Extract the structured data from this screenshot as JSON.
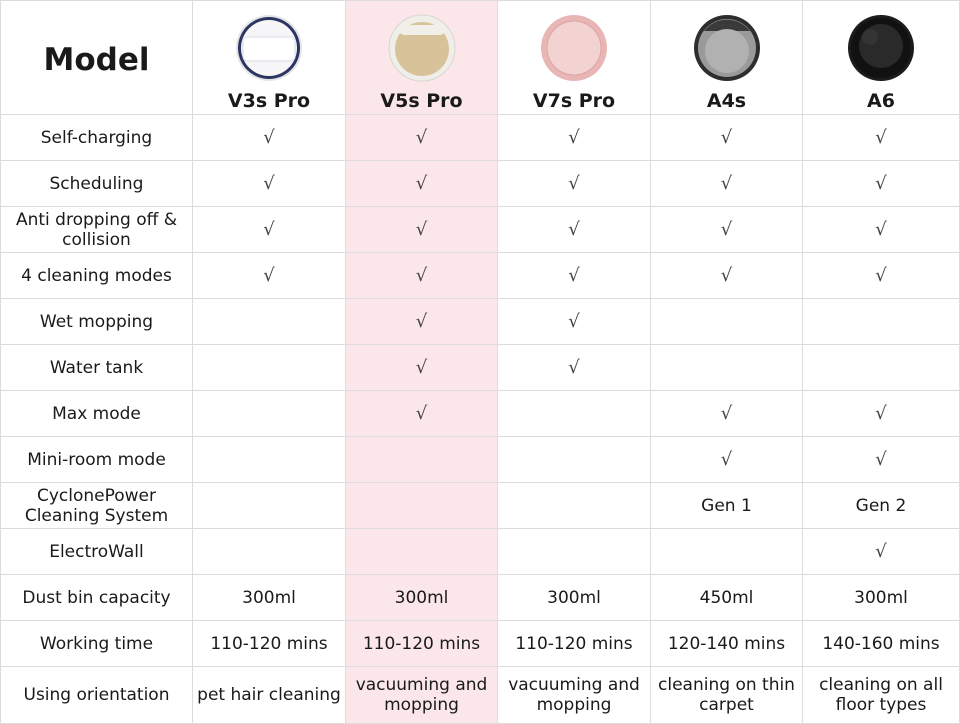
{
  "header": {
    "model_label": "Model"
  },
  "models": [
    {
      "name": "V3s Pro",
      "image": "robot-vacuum-white-icon",
      "body_color": "#f6f6f8",
      "accent": "#2d3561"
    },
    {
      "name": "V5s Pro",
      "image": "robot-vacuum-gold-icon",
      "body_color": "#d8c29a",
      "accent": "#f1efe9"
    },
    {
      "name": "V7s Pro",
      "image": "robot-vacuum-pink-icon",
      "body_color": "#e9b6b6",
      "accent": "#f3d2d2"
    },
    {
      "name": "A4s",
      "image": "robot-vacuum-grey-icon",
      "body_color": "#9a9a9a",
      "accent": "#3a3a3a"
    },
    {
      "name": "A6",
      "image": "robot-vacuum-black-icon",
      "body_color": "#111111",
      "accent": "#2a2a2a"
    }
  ],
  "highlight_color": "#fbe7e9",
  "check_symbol": "√",
  "rows": [
    {
      "label": "Self-charging",
      "values": [
        "√",
        "√",
        "√",
        "√",
        "√"
      ]
    },
    {
      "label": "Scheduling",
      "values": [
        "√",
        "√",
        "√",
        "√",
        "√"
      ]
    },
    {
      "label": "Anti dropping off & collision",
      "values": [
        "√",
        "√",
        "√",
        "√",
        "√"
      ]
    },
    {
      "label": "4 cleaning modes",
      "values": [
        "√",
        "√",
        "√",
        "√",
        "√"
      ]
    },
    {
      "label": "Wet mopping",
      "values": [
        "",
        "√",
        "√",
        "",
        ""
      ]
    },
    {
      "label": "Water tank",
      "values": [
        "",
        "√",
        "√",
        "",
        ""
      ]
    },
    {
      "label": "Max mode",
      "values": [
        "",
        "√",
        "",
        "√",
        "√"
      ]
    },
    {
      "label": "Mini-room mode",
      "values": [
        "",
        "",
        "",
        "√",
        "√"
      ]
    },
    {
      "label": "CyclonePower Cleaning System",
      "values": [
        "",
        "",
        "",
        "Gen 1",
        "Gen 2"
      ]
    },
    {
      "label": "ElectroWall",
      "values": [
        "",
        "",
        "",
        "",
        "√"
      ]
    },
    {
      "label": "Dust bin capacity",
      "values": [
        "300ml",
        "300ml",
        "300ml",
        "450ml",
        "300ml"
      ]
    },
    {
      "label": "Working time",
      "values": [
        "110-120 mins",
        "110-120 mins",
        "110-120 mins",
        "120-140 mins",
        "140-160 mins"
      ]
    },
    {
      "label": "Using orientation",
      "values": [
        "pet hair cleaning",
        "vacuuming and mopping",
        "vacuuming and mopping",
        "cleaning on thin carpet",
        "cleaning on all floor types"
      ]
    }
  ]
}
